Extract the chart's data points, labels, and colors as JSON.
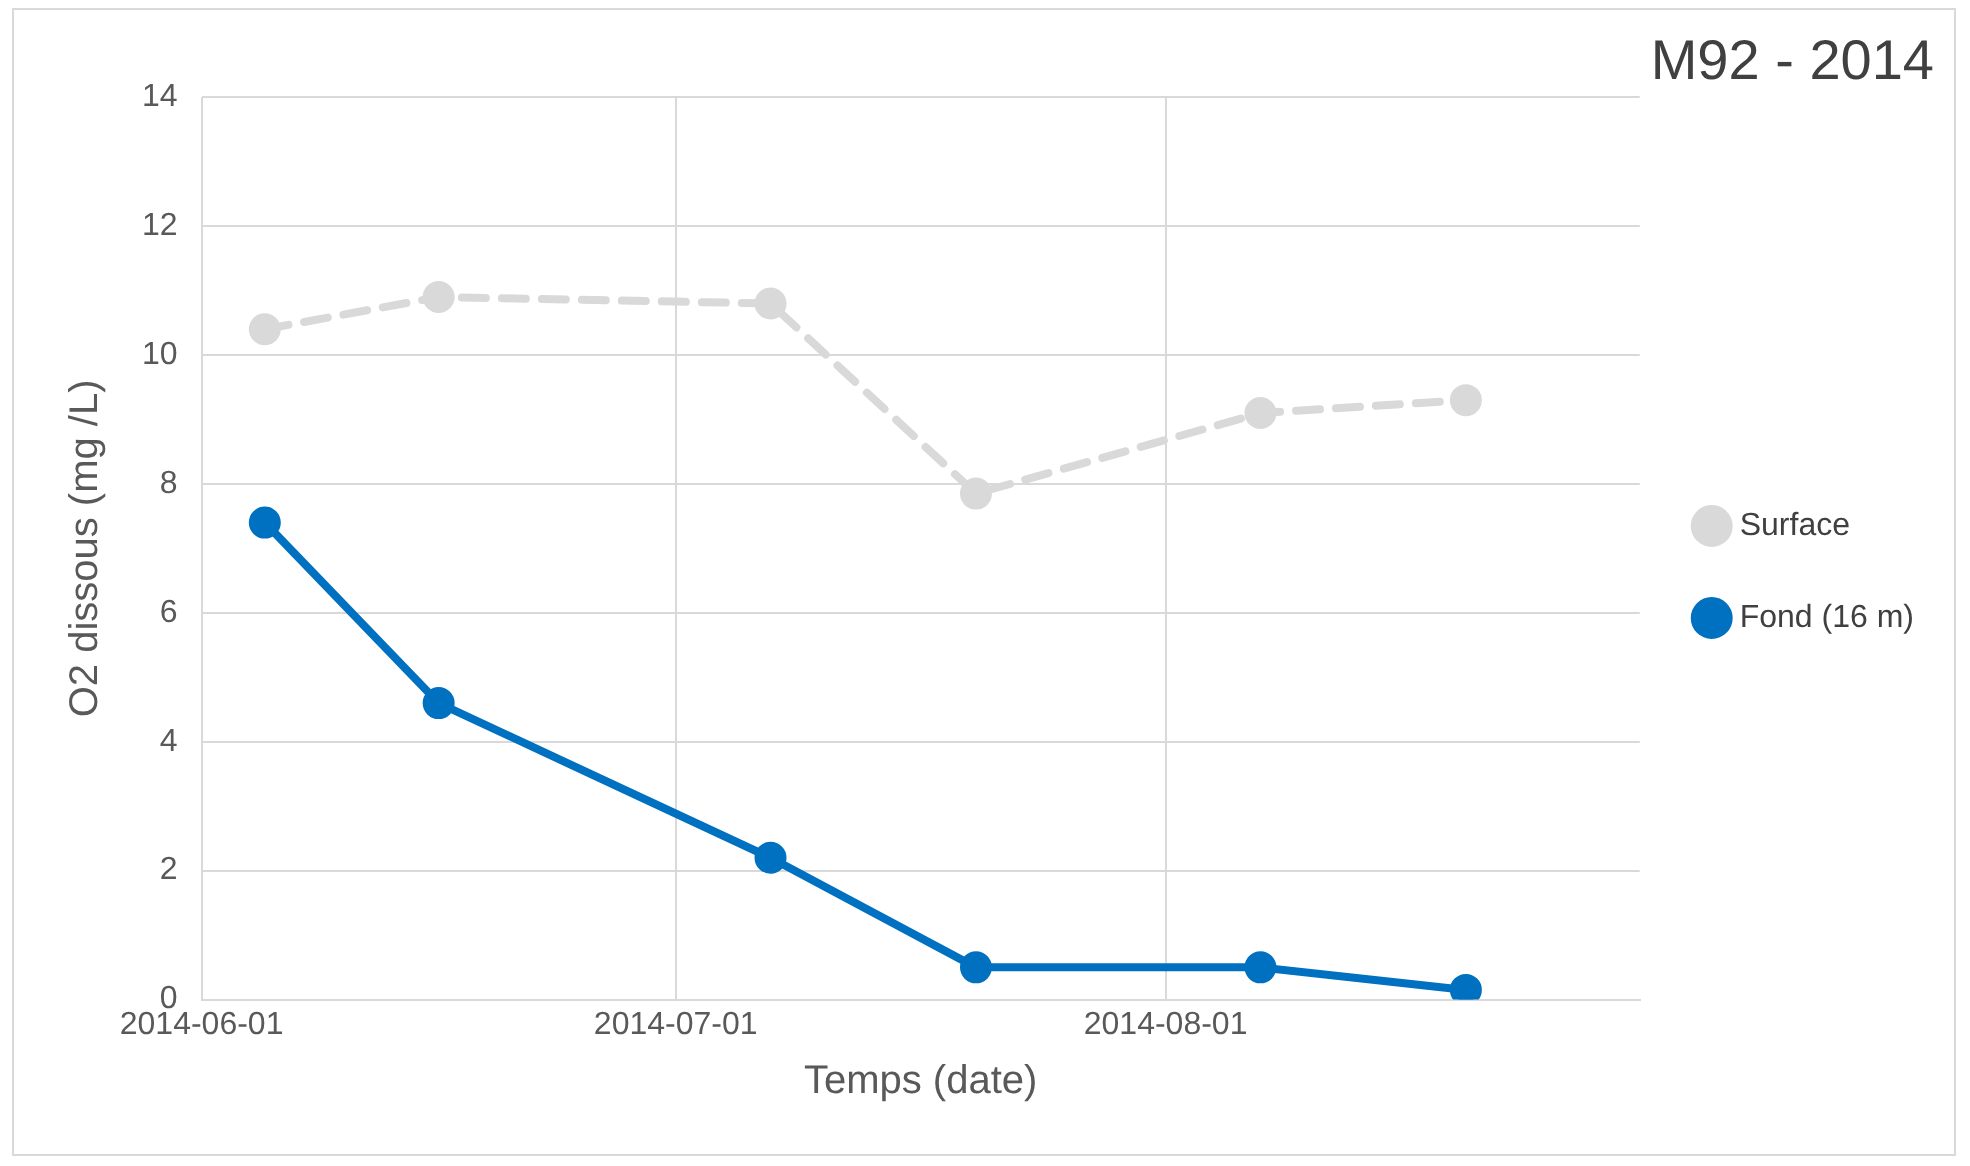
{
  "chart_data": {
    "type": "line",
    "title": "M92 - 2014",
    "xlabel": "Temps (date)",
    "ylabel": "O2 dissous (mg /L)",
    "x": [
      "2014-06-05",
      "2014-06-16",
      "2014-07-07",
      "2014-07-20",
      "2014-08-07",
      "2014-08-20"
    ],
    "series": [
      {
        "name": "Surface",
        "color": "#d9d9d9",
        "line_style": "dashed",
        "values": [
          10.4,
          10.9,
          10.8,
          7.85,
          9.1,
          9.3
        ]
      },
      {
        "name": "Fond (16 m)",
        "color": "#0070c0",
        "line_style": "solid",
        "values": [
          7.4,
          4.6,
          2.2,
          0.5,
          0.5,
          0.15
        ]
      }
    ],
    "xlim": [
      "2014-06-01",
      "2014-08-31"
    ],
    "xticks": [
      "2014-06-01",
      "2014-07-01",
      "2014-08-01"
    ],
    "ylim": [
      0,
      14
    ],
    "yticks": [
      0,
      2,
      4,
      6,
      8,
      10,
      12,
      14
    ],
    "grid": true,
    "legend": "right",
    "marker": "circle"
  }
}
